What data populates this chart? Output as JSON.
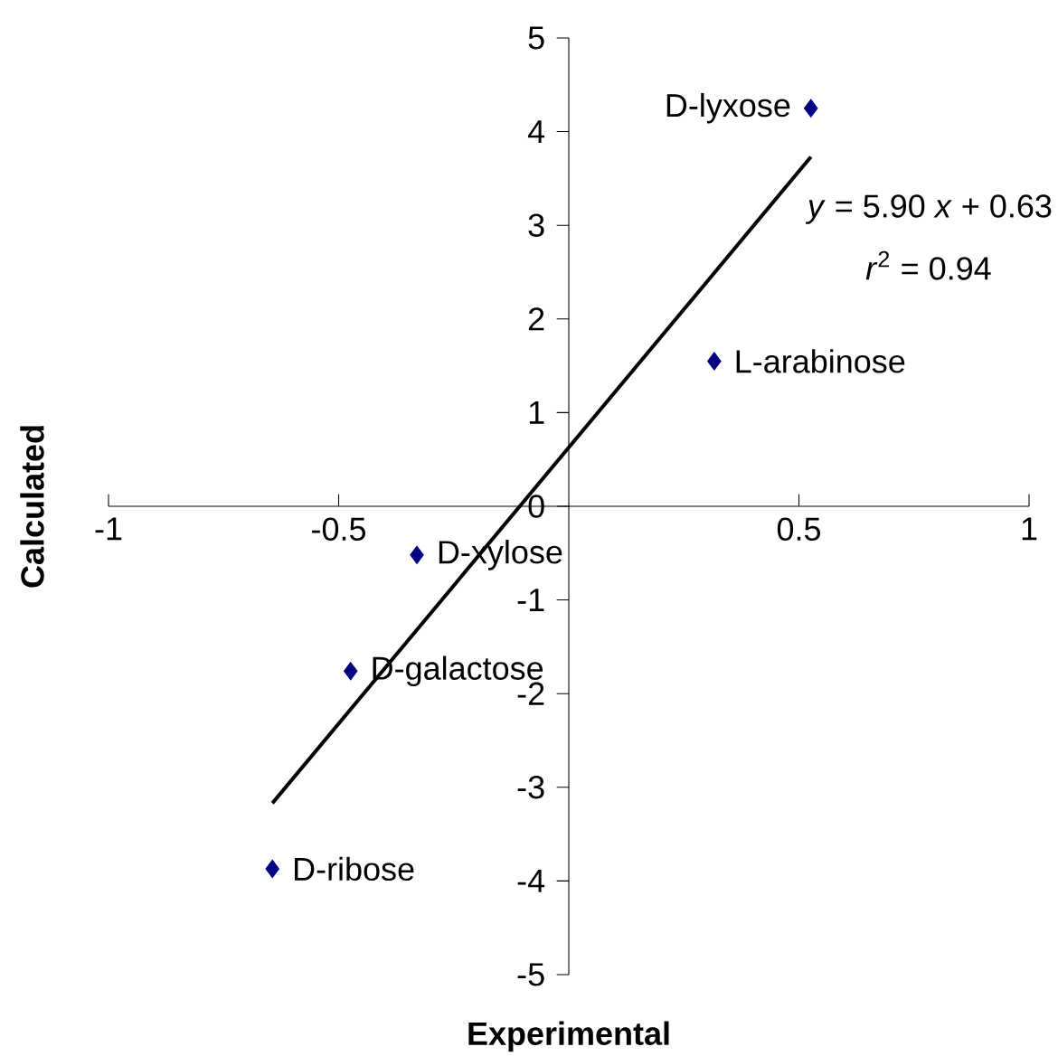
{
  "chart_data": {
    "type": "scatter",
    "xlabel": "Experimental",
    "ylabel": "Calculated",
    "xlim": [
      -1,
      1
    ],
    "ylim": [
      -5,
      5
    ],
    "xticks": [
      -1,
      -0.5,
      0.5,
      1
    ],
    "yticks": [
      -5,
      -4,
      -3,
      -2,
      -1,
      0,
      1,
      2,
      3,
      4,
      5
    ],
    "series": [
      {
        "color": "#000080",
        "marker": "diamond",
        "x": [
          0.526,
          0.316,
          -0.33,
          -0.474,
          -0.644
        ],
        "values": [
          4.25,
          1.55,
          -0.52,
          -1.76,
          -3.87
        ]
      },
      {
        "type": "line",
        "color": "#000000",
        "marker": "none",
        "line_style": "solid",
        "x": [
          -0.644,
          0.526
        ],
        "values": [
          -3.17,
          3.73
        ]
      }
    ],
    "annotations": [
      {
        "text": "D-lyxose",
        "x": 0.526,
        "y": 4.25
      },
      {
        "text": "L-arabinose",
        "x": 0.316,
        "y": 1.55
      },
      {
        "text": "D-xylose",
        "x": -0.33,
        "y": -0.52
      },
      {
        "text": "D-galactose",
        "x": -0.474,
        "y": -1.76
      },
      {
        "text": "D-ribose",
        "x": -0.644,
        "y": -3.87
      },
      "*y* = 5.90 *x* + 0.63",
      "*r*$^{2}$ = 0.94"
    ]
  }
}
